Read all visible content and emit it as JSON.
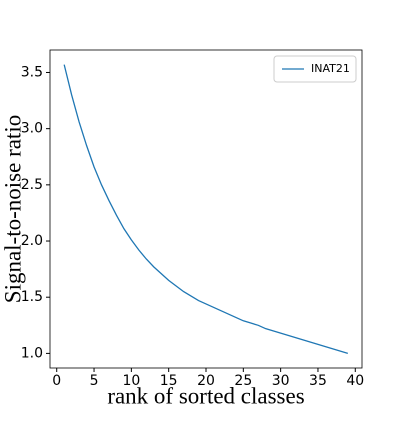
{
  "chart_data": {
    "type": "line",
    "x_label": "rank of sorted classes",
    "y_label": "Signal-to-noise ratio",
    "x": [
      1,
      2,
      3,
      4,
      5,
      6,
      7,
      8,
      9,
      10,
      11,
      12,
      13,
      14,
      15,
      16,
      17,
      18,
      19,
      20,
      21,
      22,
      23,
      24,
      25,
      26,
      27,
      28,
      29,
      30,
      31,
      32,
      33,
      34,
      35,
      36,
      37,
      38,
      39
    ],
    "series": [
      {
        "name": "INAT21",
        "color": "#1f77b4",
        "values": [
          3.57,
          3.3,
          3.06,
          2.85,
          2.66,
          2.5,
          2.36,
          2.23,
          2.11,
          2.01,
          1.92,
          1.84,
          1.77,
          1.71,
          1.65,
          1.6,
          1.55,
          1.51,
          1.47,
          1.44,
          1.41,
          1.38,
          1.35,
          1.32,
          1.29,
          1.27,
          1.25,
          1.22,
          1.2,
          1.18,
          1.16,
          1.14,
          1.12,
          1.1,
          1.08,
          1.06,
          1.04,
          1.02,
          1.0
        ]
      }
    ],
    "xlim": [
      -0.9,
      40.9
    ],
    "ylim": [
      0.87,
      3.7
    ],
    "xticks": [
      0,
      5,
      10,
      15,
      20,
      25,
      30,
      35,
      40
    ],
    "yticks": [
      {
        "value": 1,
        "label": "1.0"
      },
      1.5,
      {
        "value": 2,
        "label": "2.0"
      },
      2.5,
      {
        "value": 3,
        "label": "3.0"
      },
      3.5
    ],
    "legend": "upper right",
    "grid": false
  }
}
